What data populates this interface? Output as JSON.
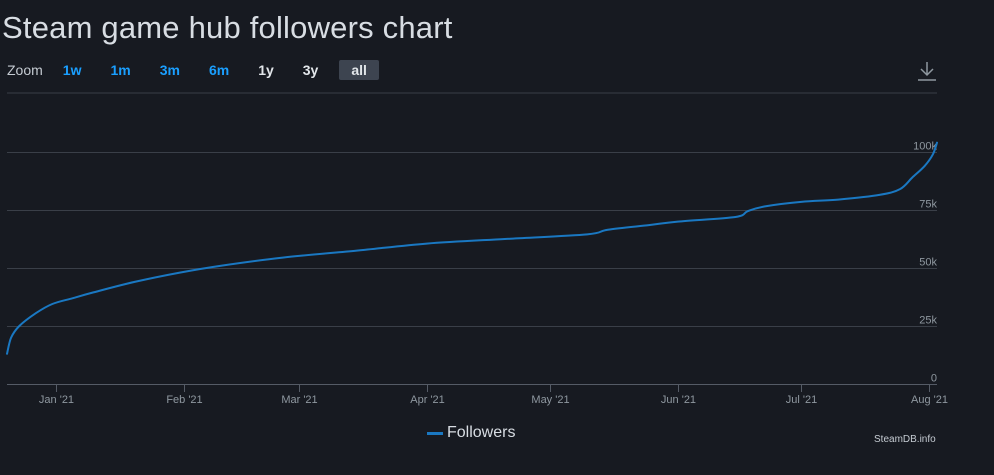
{
  "title": "Steam game hub followers chart",
  "zoom": {
    "label": "Zoom",
    "buttons": [
      "1w",
      "1m",
      "3m",
      "6m",
      "1y",
      "3y",
      "all"
    ],
    "active": "all"
  },
  "credit": "SteamDB.info",
  "colors": {
    "background": "#171a21",
    "series": "#1a78c2",
    "grid": "#3a3f48",
    "zoom_link": "#1a9fff"
  },
  "chart_data": {
    "type": "line",
    "title": "Steam game hub followers chart",
    "xlabel": "",
    "ylabel": "",
    "x_tick_labels": [
      "Jan '21",
      "Feb '21",
      "Mar '21",
      "Apr '21",
      "May '21",
      "Jun '21",
      "Jul '21",
      "Aug '21"
    ],
    "x_ticks": [
      "2021-01-01",
      "2021-02-01",
      "2021-03-01",
      "2021-04-01",
      "2021-05-01",
      "2021-06-01",
      "2021-07-01",
      "2021-08-01"
    ],
    "xlim": [
      "2020-12-20",
      "2021-08-03"
    ],
    "y_tick_labels": [
      "0",
      "25k",
      "50k",
      "75k",
      "100k"
    ],
    "y_ticks": [
      0,
      25000,
      50000,
      75000,
      100000
    ],
    "ylim": [
      0,
      100000
    ],
    "legend": "bottom-center",
    "grid": true,
    "series": [
      {
        "name": "Followers",
        "points": [
          [
            "2020-12-20",
            13000
          ],
          [
            "2020-12-21",
            20000
          ],
          [
            "2020-12-23",
            25000
          ],
          [
            "2020-12-27",
            30500
          ],
          [
            "2020-12-31",
            34500
          ],
          [
            "2021-01-05",
            37000
          ],
          [
            "2021-01-10",
            39500
          ],
          [
            "2021-01-20",
            44000
          ],
          [
            "2021-01-31",
            48000
          ],
          [
            "2021-02-10",
            51000
          ],
          [
            "2021-02-25",
            54500
          ],
          [
            "2021-03-15",
            57500
          ],
          [
            "2021-04-01",
            60500
          ],
          [
            "2021-04-20",
            62500
          ],
          [
            "2021-05-10",
            64500
          ],
          [
            "2021-05-15",
            66500
          ],
          [
            "2021-05-25",
            68500
          ],
          [
            "2021-06-01",
            70000
          ],
          [
            "2021-06-15",
            72000
          ],
          [
            "2021-06-18",
            74500
          ],
          [
            "2021-06-22",
            76500
          ],
          [
            "2021-07-01",
            78500
          ],
          [
            "2021-07-10",
            79500
          ],
          [
            "2021-07-20",
            81500
          ],
          [
            "2021-07-25",
            84000
          ],
          [
            "2021-07-28",
            89000
          ],
          [
            "2021-07-31",
            94000
          ],
          [
            "2021-08-02",
            99000
          ],
          [
            "2021-08-03",
            104000
          ]
        ]
      }
    ]
  }
}
